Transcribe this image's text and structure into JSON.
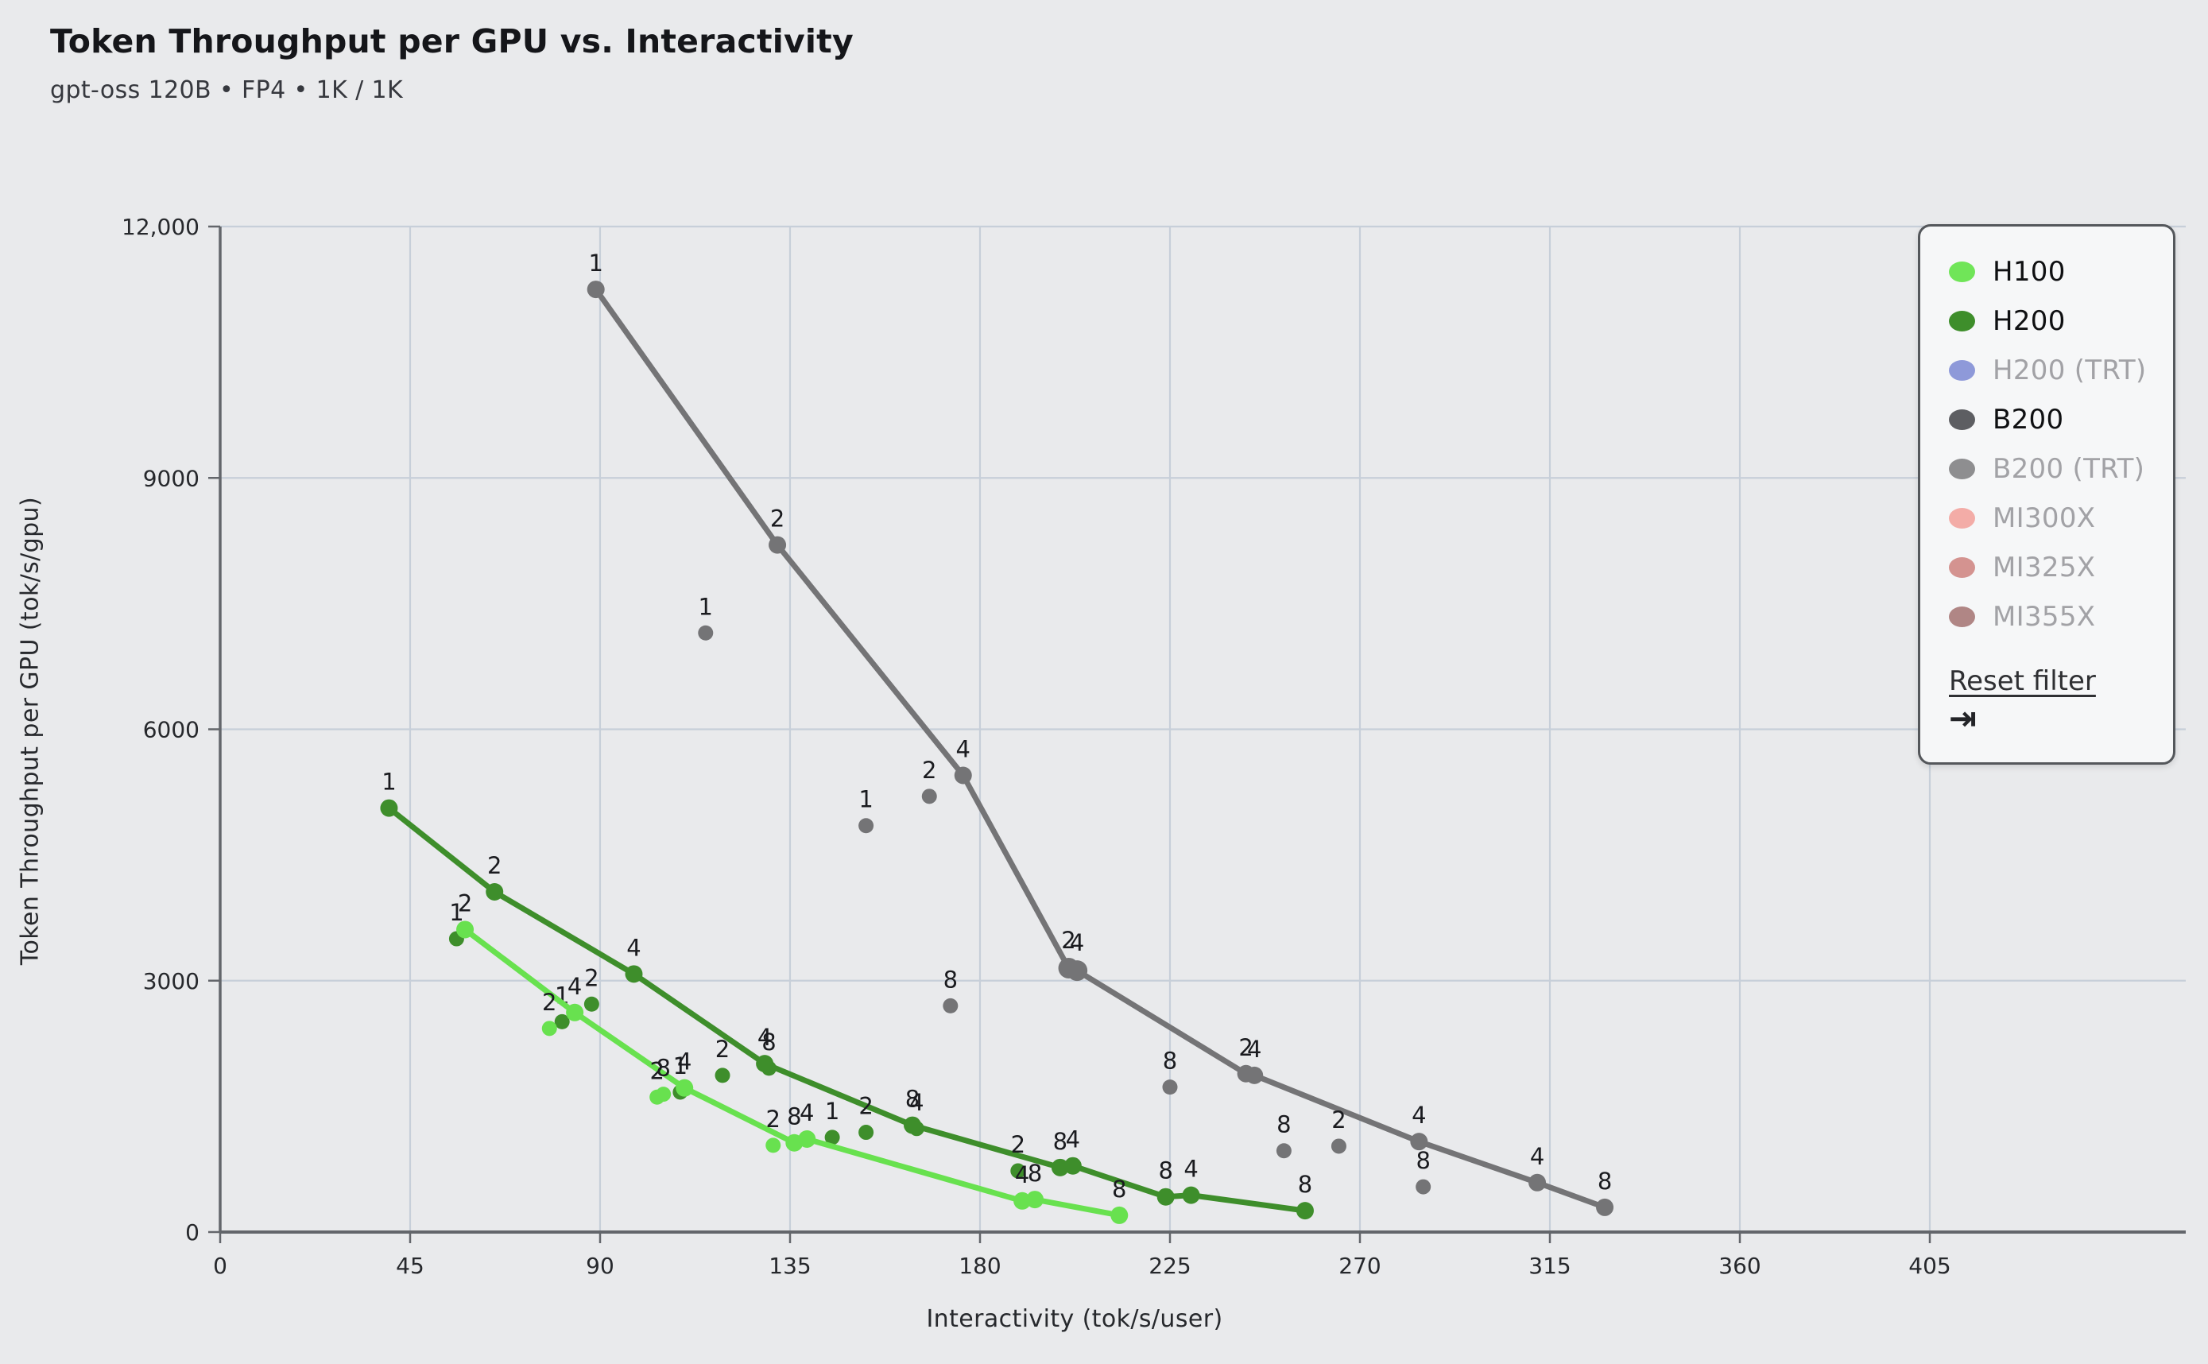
{
  "title": "Token Throughput per GPU vs. Interactivity",
  "subtitle": "gpt-oss 120B • FP4 • 1K / 1K",
  "background": "#e9eaec",
  "chart_data": {
    "type": "scatter",
    "title": "Token Throughput per GPU vs. Interactivity",
    "subtitle": "gpt-oss 120B • FP4 • 1K / 1K",
    "xlabel": "Interactivity (tok/s/user)",
    "ylabel": "Token Throughput per GPU (tok/s/gpu)",
    "xlim": [
      0,
      405
    ],
    "ylim": [
      0,
      12000
    ],
    "x_ticks": [
      0,
      45,
      90,
      135,
      180,
      225,
      270,
      315,
      360,
      405
    ],
    "y_ticks": [
      0,
      3000,
      6000,
      9000,
      12000
    ],
    "y_tick_labels": [
      "0",
      "3000",
      "6000",
      "9000",
      "12,000"
    ],
    "grid": true,
    "gridline_color": "#c7cfd9",
    "axis_color": "#63666b",
    "point_label_note": "numbers above points are GPU counts (1, 2, 4, 8)",
    "series": [
      {
        "name": "B200",
        "color": "#747476",
        "line": [
          {
            "x": 89,
            "y": 11250,
            "label": "1"
          },
          {
            "x": 132,
            "y": 8200,
            "label": "2"
          },
          {
            "x": 176,
            "y": 5450,
            "label": "4"
          },
          {
            "x": 201,
            "y": 3150,
            "label": "2",
            "r": 13
          },
          {
            "x": 203,
            "y": 3120,
            "label": "4",
            "r": 13
          },
          {
            "x": 243,
            "y": 1890,
            "label": "2"
          },
          {
            "x": 245,
            "y": 1870,
            "label": "4"
          },
          {
            "x": 284,
            "y": 1080,
            "label": "4"
          },
          {
            "x": 312,
            "y": 590,
            "label": "4"
          },
          {
            "x": 328,
            "y": 295,
            "label": "8"
          }
        ],
        "scatter": [
          {
            "x": 115,
            "y": 7150,
            "label": "1"
          },
          {
            "x": 153,
            "y": 4850,
            "label": "1"
          },
          {
            "x": 168,
            "y": 5200,
            "label": "2"
          },
          {
            "x": 173,
            "y": 2700,
            "label": "8"
          },
          {
            "x": 225,
            "y": 1730,
            "label": "8"
          },
          {
            "x": 252,
            "y": 970,
            "label": "8"
          },
          {
            "x": 265,
            "y": 1025,
            "label": "2"
          },
          {
            "x": 285,
            "y": 540,
            "label": "8"
          }
        ]
      },
      {
        "name": "H200",
        "color": "#3e8e2b",
        "line": [
          {
            "x": 40,
            "y": 5060,
            "label": "1"
          },
          {
            "x": 65,
            "y": 4060,
            "label": "2"
          },
          {
            "x": 98,
            "y": 3080,
            "label": "4"
          },
          {
            "x": 129,
            "y": 2010,
            "label": "4"
          },
          {
            "x": 164,
            "y": 1275,
            "label": "8"
          },
          {
            "x": 199,
            "y": 770,
            "label": "8"
          },
          {
            "x": 202,
            "y": 790,
            "label": "4"
          },
          {
            "x": 224,
            "y": 420,
            "label": "8"
          },
          {
            "x": 230,
            "y": 440,
            "label": "4"
          },
          {
            "x": 257,
            "y": 255,
            "label": "8"
          }
        ],
        "scatter": [
          {
            "x": 56,
            "y": 3500,
            "label": "1"
          },
          {
            "x": 81,
            "y": 2510,
            "label": "1"
          },
          {
            "x": 88,
            "y": 2720,
            "label": "2"
          },
          {
            "x": 109,
            "y": 1670,
            "label": "1"
          },
          {
            "x": 119,
            "y": 1870,
            "label": "2"
          },
          {
            "x": 130,
            "y": 1955,
            "label": "8"
          },
          {
            "x": 145,
            "y": 1130,
            "label": "1"
          },
          {
            "x": 153,
            "y": 1190,
            "label": "2"
          },
          {
            "x": 165,
            "y": 1235,
            "label": "4"
          },
          {
            "x": 189,
            "y": 730,
            "label": "2"
          }
        ]
      },
      {
        "name": "H100",
        "color": "#68e14f",
        "line": [
          {
            "x": 58,
            "y": 3610,
            "label": "2"
          },
          {
            "x": 84,
            "y": 2620,
            "label": "4"
          },
          {
            "x": 110,
            "y": 1720,
            "label": "4"
          },
          {
            "x": 136,
            "y": 1065,
            "label": "8"
          },
          {
            "x": 139,
            "y": 1110,
            "label": "4"
          },
          {
            "x": 190,
            "y": 372,
            "label": "4"
          },
          {
            "x": 193,
            "y": 388,
            "label": "8"
          },
          {
            "x": 213,
            "y": 200,
            "label": "8"
          }
        ],
        "scatter": [
          {
            "x": 78,
            "y": 2430,
            "label": "2"
          },
          {
            "x": 103.5,
            "y": 1610,
            "label": "2"
          },
          {
            "x": 105,
            "y": 1645,
            "label": "8"
          },
          {
            "x": 131,
            "y": 1035,
            "label": "2"
          }
        ]
      }
    ]
  },
  "legend": {
    "items": [
      {
        "label": "H100",
        "color": "#70e558",
        "active": true
      },
      {
        "label": "H200",
        "color": "#3e8e2b",
        "active": true
      },
      {
        "label": "H200 (TRT)",
        "color": "#8e99d9",
        "active": false
      },
      {
        "label": "B200",
        "color": "#5d5e62",
        "active": true
      },
      {
        "label": "B200 (TRT)",
        "color": "#8e8e90",
        "active": false
      },
      {
        "label": "MI300X",
        "color": "#f3aca7",
        "active": false
      },
      {
        "label": "MI325X",
        "color": "#d49390",
        "active": false
      },
      {
        "label": "MI355X",
        "color": "#b08685",
        "active": false
      }
    ],
    "reset_label": "Reset filter",
    "collapse_icon": "⇥"
  }
}
